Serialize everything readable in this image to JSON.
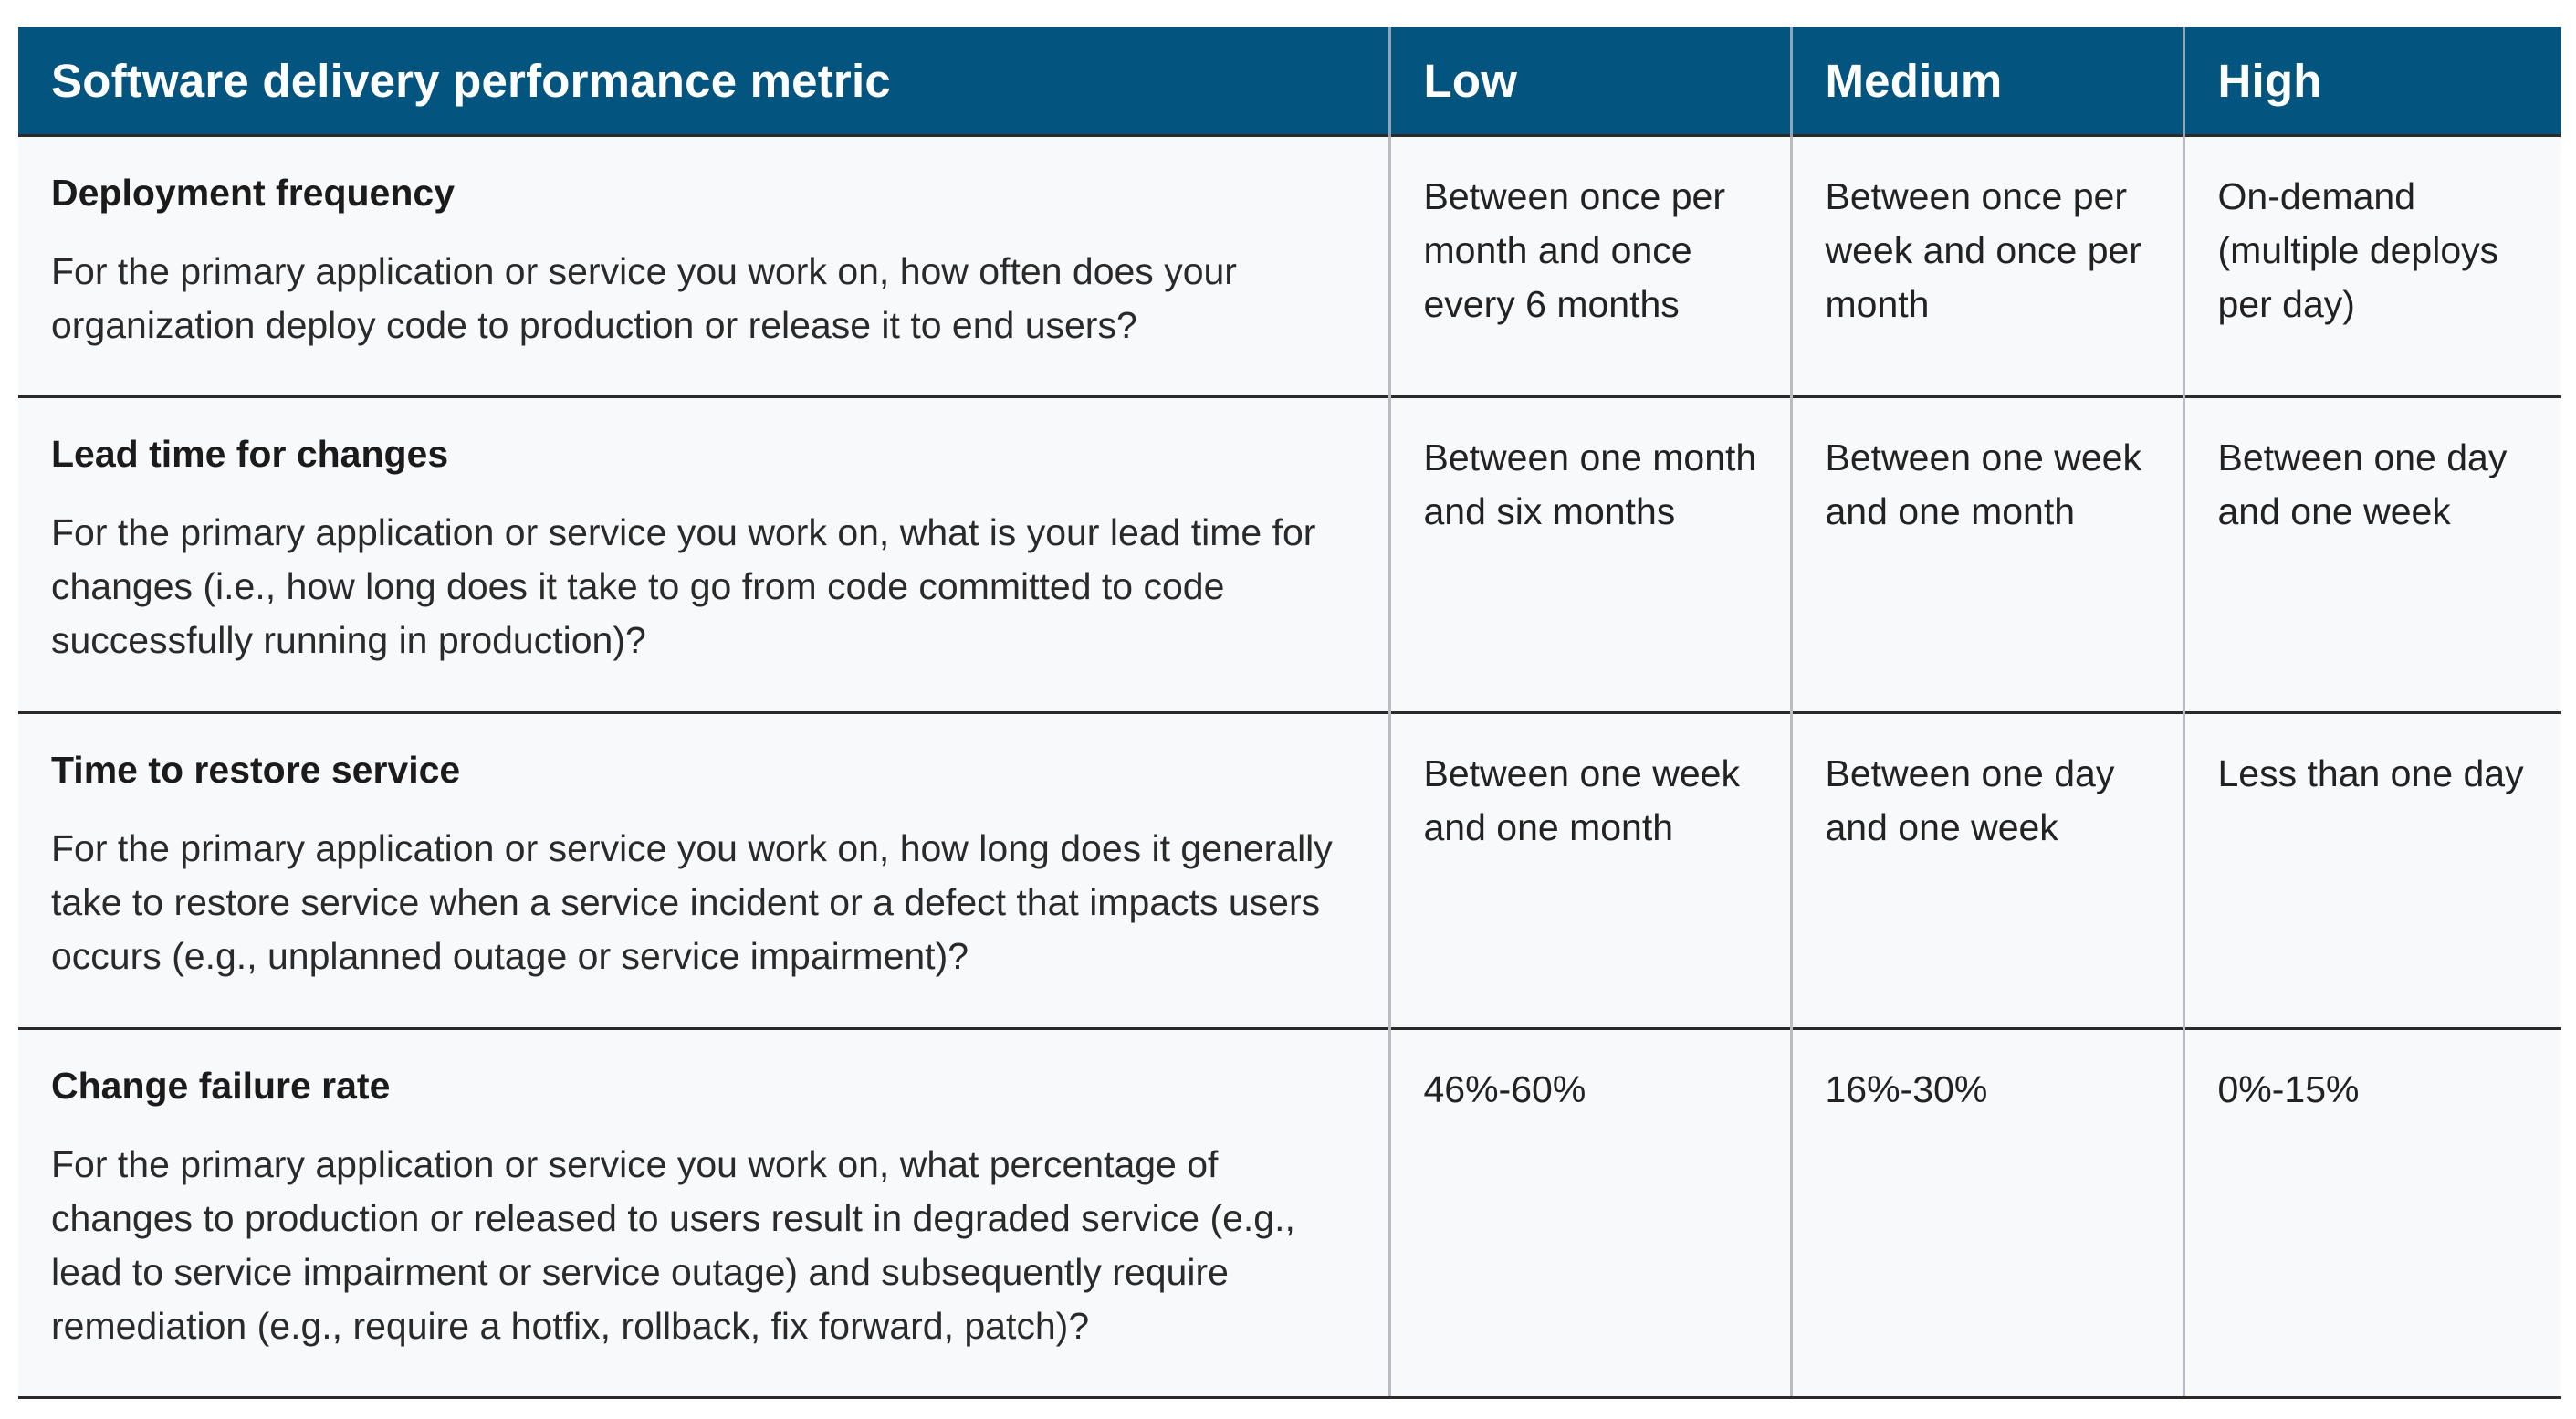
{
  "table": {
    "headers": {
      "metric": "Software delivery performance metric",
      "low": "Low",
      "medium": "Medium",
      "high": "High"
    },
    "rows": [
      {
        "name": "Deployment frequency",
        "question": "For the primary application or service you work on, how often does your organization deploy code to production or release it to end users?",
        "low": "Between once per month and once every 6 months",
        "medium": "Between once per week and once per month",
        "high": "On-demand (multiple deploys per day)"
      },
      {
        "name": "Lead time for changes",
        "question": "For the primary application or service you work on, what is your lead time for changes (i.e., how long does it take to go from code committed to code successfully running in production)?",
        "low": "Between one month and six months",
        "medium": "Between one week and one month",
        "high": "Between one day and one week"
      },
      {
        "name": "Time to restore service",
        "question": "For the primary application or service you work on, how long does it generally take to restore service when a service incident or a defect that impacts users occurs (e.g., unplanned outage or service impairment)?",
        "low": "Between one week and one month",
        "medium": "Between one day and one week",
        "high": "Less than one day"
      },
      {
        "name": "Change failure rate",
        "question": "For the primary application or service you work on, what percentage of changes to production or released to users result in degraded service (e.g., lead to service impairment or service outage) and subsequently require remediation (e.g., require a hotfix, rollback, fix forward, patch)?",
        "low": "46%-60%",
        "medium": "16%-30%",
        "high": "0%-15%"
      }
    ]
  },
  "colors": {
    "header_bg": "#03557f",
    "header_text": "#ffffff",
    "cell_bg": "#f8f9fb"
  }
}
